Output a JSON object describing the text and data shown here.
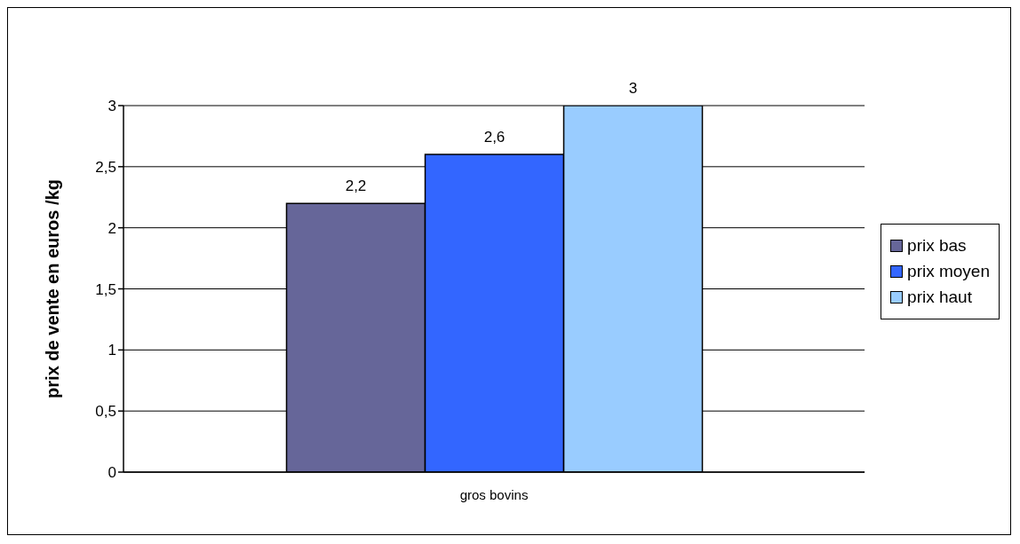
{
  "chart_data": {
    "type": "bar",
    "categories": [
      "gros bovins"
    ],
    "ylabel": "prix de vente en euros /kg",
    "series": [
      {
        "name": "prix bas",
        "color": "#666699",
        "values": [
          2.2
        ],
        "value_labels": [
          "2,2"
        ]
      },
      {
        "name": "prix moyen",
        "color": "#3366ff",
        "values": [
          2.6
        ],
        "value_labels": [
          "2,6"
        ]
      },
      {
        "name": "prix haut",
        "color": "#99ccff",
        "values": [
          3
        ],
        "value_labels": [
          "3"
        ]
      }
    ],
    "ylim": [
      0,
      3
    ],
    "yticks": [
      0,
      {
        "value": 0.5,
        "label": "0,5"
      },
      1,
      {
        "value": 1.5,
        "label": "1,5"
      },
      2,
      {
        "value": 2.5,
        "label": "2,5"
      },
      3
    ],
    "grid": "y",
    "legend": "right"
  }
}
